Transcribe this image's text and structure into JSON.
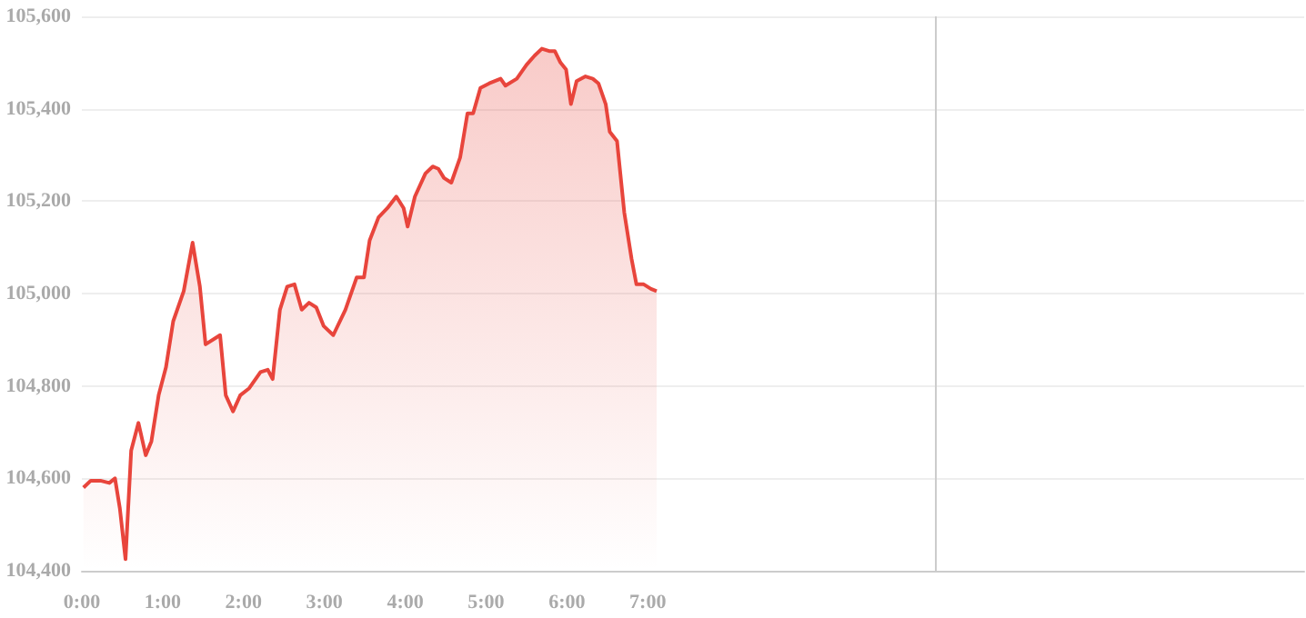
{
  "chart_data": {
    "type": "area",
    "x": [
      0.02,
      0.11,
      0.23,
      0.34,
      0.41,
      0.47,
      0.54,
      0.61,
      0.7,
      0.79,
      0.86,
      0.95,
      1.04,
      1.13,
      1.26,
      1.37,
      1.46,
      1.53,
      1.71,
      1.78,
      1.87,
      1.96,
      2.07,
      2.21,
      2.3,
      2.36,
      2.45,
      2.54,
      2.63,
      2.72,
      2.81,
      2.9,
      2.99,
      3.11,
      3.26,
      3.4,
      3.49,
      3.56,
      3.67,
      3.78,
      3.89,
      3.98,
      4.03,
      4.12,
      4.25,
      4.34,
      4.41,
      4.48,
      4.57,
      4.68,
      4.77,
      4.84,
      4.93,
      5.04,
      5.18,
      5.24,
      5.38,
      5.5,
      5.6,
      5.69,
      5.78,
      5.85,
      5.92,
      5.99,
      6.05,
      6.12,
      6.23,
      6.32,
      6.39,
      6.48,
      6.53,
      6.62,
      6.71,
      6.8,
      6.86,
      6.95,
      7.04,
      7.11
    ],
    "series": [
      {
        "color": "#e8453c",
        "values": [
          104580,
          104595,
          104595,
          104590,
          104600,
          104535,
          104425,
          104660,
          104720,
          104650,
          104680,
          104780,
          104840,
          104940,
          105005,
          105110,
          105015,
          104890,
          104910,
          104780,
          104745,
          104780,
          104795,
          104830,
          104835,
          104815,
          104965,
          105015,
          105020,
          104965,
          104980,
          104970,
          104930,
          104910,
          104965,
          105035,
          105035,
          105115,
          105165,
          105185,
          105210,
          105185,
          105145,
          105210,
          105260,
          105275,
          105270,
          105250,
          105240,
          105295,
          105390,
          105390,
          105445,
          105455,
          105465,
          105450,
          105465,
          105495,
          105515,
          105530,
          105525,
          105525,
          105500,
          105485,
          105410,
          105460,
          105470,
          105465,
          105455,
          105410,
          105350,
          105330,
          105175,
          105075,
          105020,
          105020,
          105010,
          105005
        ]
      }
    ],
    "xlim": [
      0,
      15.12
    ],
    "xticks": [
      {
        "value": 0,
        "label": "0:00"
      },
      {
        "value": 1,
        "label": "1:00"
      },
      {
        "value": 2,
        "label": "2:00"
      },
      {
        "value": 3,
        "label": "3:00"
      },
      {
        "value": 4,
        "label": "4:00"
      },
      {
        "value": 5,
        "label": "5:00"
      },
      {
        "value": 6,
        "label": "6:00"
      },
      {
        "value": 7,
        "label": "7:00"
      }
    ],
    "ylim": [
      104400,
      105600
    ],
    "yticks": [
      {
        "value": 104400,
        "label": "104,400"
      },
      {
        "value": 104600,
        "label": "104,600"
      },
      {
        "value": 104800,
        "label": "104,800"
      },
      {
        "value": 105000,
        "label": "105,000"
      },
      {
        "value": 105200,
        "label": "105,200"
      },
      {
        "value": 105400,
        "label": "105,400"
      },
      {
        "value": 105600,
        "label": "105,600"
      }
    ],
    "ref_lines": [
      {
        "axis": "x",
        "value": 10.56,
        "color": "#cccccc"
      }
    ],
    "grid": "y",
    "marker": "none",
    "line_style": "solid"
  }
}
